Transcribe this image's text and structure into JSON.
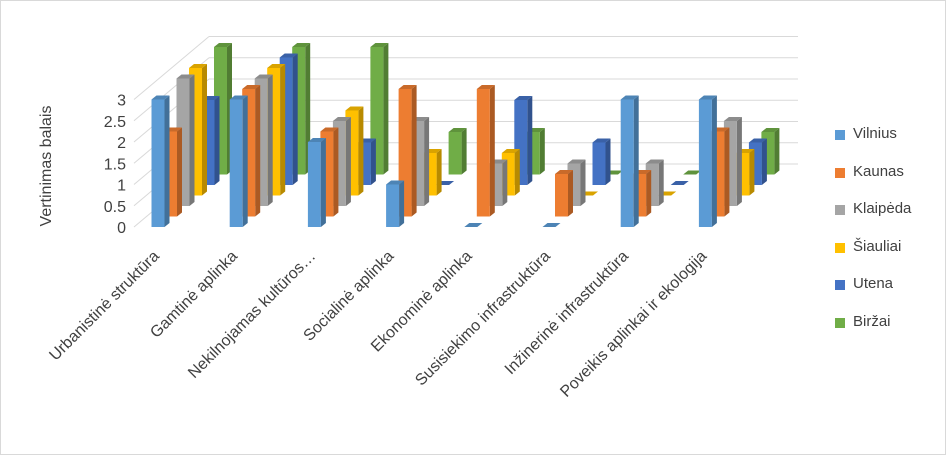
{
  "chart_data": {
    "type": "bar",
    "variant": "3d-clustered-columns",
    "title": "",
    "xlabel": "",
    "ylabel": "Vertinimas balais",
    "ylim": [
      0,
      3
    ],
    "yticks": [
      "0",
      "0.5",
      "1",
      "1.5",
      "2",
      "2.5",
      "3"
    ],
    "grid": true,
    "legend_position": "right",
    "categories": [
      "Urbanistinė  struktūra",
      "Gamtinė aplinka",
      "Nekilnojamas kultūros…",
      "Socialinė aplinka",
      "Ekonominė aplinka",
      "Susisiekimo infrastruktūra",
      "Inžinerinė infrastruktūra",
      "Poveikis aplinkai ir ekologija"
    ],
    "series": [
      {
        "name": "Vilnius",
        "color": "#5b9bd5",
        "values": [
          3,
          3,
          2,
          1,
          0,
          0,
          3,
          3
        ]
      },
      {
        "name": "Kaunas",
        "color": "#ed7d31",
        "values": [
          2,
          3,
          2,
          3,
          3,
          1,
          1,
          2
        ]
      },
      {
        "name": "Klaipėda",
        "color": "#a5a5a5",
        "values": [
          3,
          3,
          2,
          2,
          1,
          1,
          1,
          2
        ]
      },
      {
        "name": "Šiauliai",
        "color": "#ffc000",
        "values": [
          3,
          3,
          2,
          1,
          1,
          0,
          0,
          1
        ]
      },
      {
        "name": "Utena",
        "color": "#4472c4",
        "values": [
          2,
          3,
          1,
          0,
          2,
          1,
          0,
          1
        ]
      },
      {
        "name": "Biržai",
        "color": "#70ad47",
        "values": [
          3,
          3,
          3,
          1,
          1,
          0,
          0,
          1
        ]
      }
    ]
  }
}
